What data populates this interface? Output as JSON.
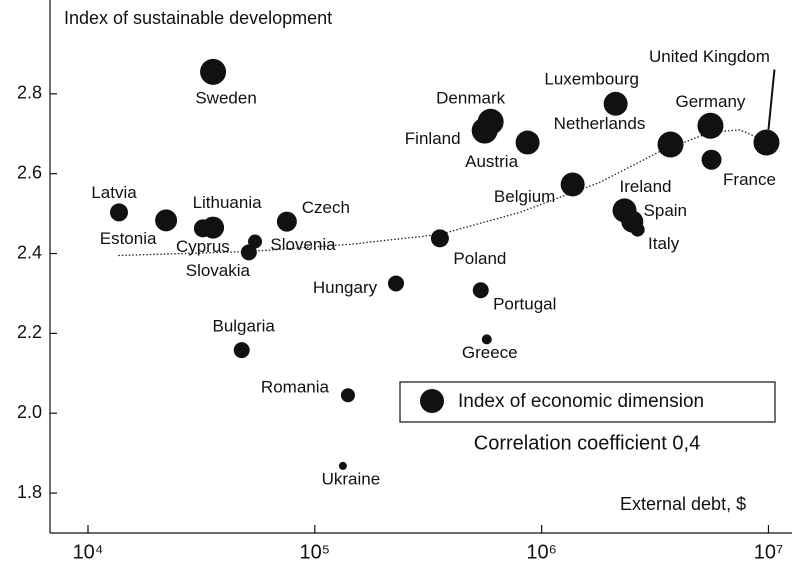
{
  "chart_data": {
    "type": "bubble",
    "y_label": "Index of sustainable development",
    "x_label": "External debt, $",
    "annotation": "Correlation coefficient 0,4",
    "xscale": "log",
    "xlim": [
      6800,
      12700000
    ],
    "ylim": [
      1.7,
      3.035
    ],
    "xticks": [
      {
        "value": 10000,
        "label": "10⁴"
      },
      {
        "value": 100000,
        "label": "10⁵"
      },
      {
        "value": 1000000,
        "label": "10⁶"
      },
      {
        "value": 10000000,
        "label": "10⁷"
      }
    ],
    "yticks": [
      1.8,
      {
        "value": 2,
        "label": "2.0"
      },
      2.2,
      2.4,
      2.6,
      2.8
    ],
    "legend": "lower right",
    "series": [
      {
        "name": "Index of economic dimension",
        "color": "#111111",
        "labels": [
          "Sweden",
          "Latvia",
          "Estonia",
          "Cyprus",
          "Lithuania",
          "Slovakia",
          "Slovenia",
          "Czech",
          "Bulgaria",
          "Romania",
          "Ukraine",
          "Hungary",
          "Poland",
          "Portugal",
          "Greece",
          "Denmark",
          "Finland",
          "Austria",
          "Belgium",
          "Luxembourg",
          "Ireland",
          "Spain",
          "Italy",
          "Netherlands",
          "Germany",
          "France",
          "United Kingdom"
        ],
        "x": [
          35600,
          13700,
          22100,
          32100,
          35600,
          51200,
          54500,
          75300,
          47600,
          140000,
          133000,
          228000,
          356000,
          539000,
          573000,
          596000,
          561000,
          867000,
          1370000,
          2120000,
          2320000,
          2510000,
          2650000,
          3700000,
          5550000,
          5610000,
          9800000
        ],
        "values": [
          2.855,
          2.503,
          2.483,
          2.463,
          2.465,
          2.403,
          2.43,
          2.48,
          2.158,
          2.045,
          1.868,
          2.325,
          2.438,
          2.308,
          2.185,
          2.73,
          2.708,
          2.678,
          2.573,
          2.775,
          2.508,
          2.48,
          2.46,
          2.673,
          2.72,
          2.635,
          2.678
        ],
        "sizes": [
          13,
          9,
          11,
          9,
          11,
          8,
          7,
          10,
          8,
          7,
          4,
          8,
          9,
          8,
          5,
          13,
          13,
          12,
          12,
          12,
          12,
          11,
          7,
          13,
          13,
          10,
          13
        ]
      }
    ],
    "trend": {
      "x": [
        13600,
        51800,
        143000,
        356000,
        800000,
        1800000,
        3310000,
        5500000,
        7450000,
        9910000
      ],
      "values": [
        2.395,
        2.405,
        2.423,
        2.448,
        2.503,
        2.578,
        2.655,
        2.703,
        2.71,
        2.68
      ]
    }
  }
}
